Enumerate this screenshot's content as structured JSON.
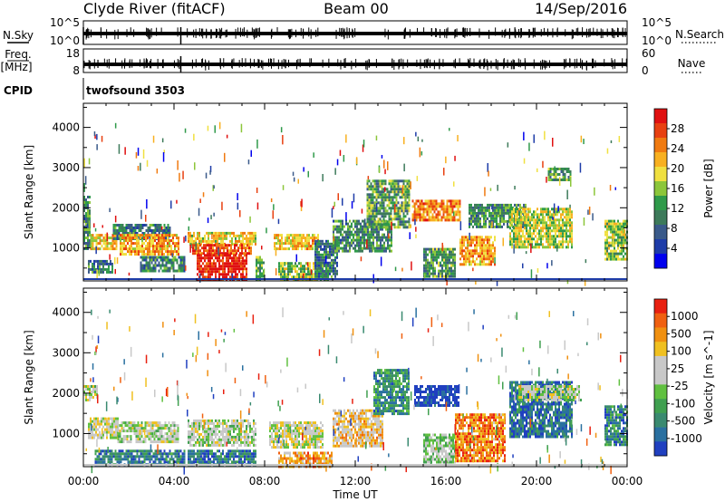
{
  "header": {
    "station": "Clyde River (fitACF)",
    "beam": "Beam 00",
    "date": "14/Sep/2016"
  },
  "strips": {
    "nsky": {
      "label": "N.Sky",
      "ticks": [
        "10^5",
        "10^0"
      ]
    },
    "freq": {
      "label_1": "Freq.",
      "label_2": "[MHz]",
      "ticks": [
        "18",
        "8"
      ]
    },
    "nsearch": {
      "label": "N.Search",
      "ticks": [
        "10^5",
        "10^0"
      ]
    },
    "nave": {
      "label": "Nave",
      "ticks": [
        "60",
        "0"
      ]
    },
    "cpid": {
      "label": "CPID",
      "value": "twofsound 3503"
    }
  },
  "chart_data": [
    {
      "type": "heatmap",
      "quantity": "power",
      "ylabel": "Slant Range [km]",
      "xlabel": "Time UT",
      "x_ticks": [
        "00:00",
        "04:00",
        "08:00",
        "12:00",
        "16:00",
        "20:00",
        "00:00"
      ],
      "x_range_hours": [
        0,
        24
      ],
      "ylim": [
        180,
        4600
      ],
      "y_ticks": [
        1000,
        2000,
        3000,
        4000
      ],
      "colorbar": {
        "label": "Power [dB]",
        "ticks": [
          4,
          8,
          12,
          16,
          20,
          24,
          28
        ],
        "colors": [
          "#0000ee",
          "#1e3ca8",
          "#3a5a8a",
          "#3d7a5a",
          "#2f9a4a",
          "#8cc63a",
          "#f0e040",
          "#f8b020",
          "#f07a10",
          "#e84010",
          "#e01010"
        ]
      },
      "echo_regions": [
        {
          "t": [
            0.0,
            0.3
          ],
          "r": [
            1000,
            2300
          ],
          "level": 0.35
        },
        {
          "t": [
            0.2,
            1.3
          ],
          "r": [
            400,
            700
          ],
          "level": 0.3
        },
        {
          "t": [
            0.3,
            1.5
          ],
          "r": [
            950,
            1350
          ],
          "level": 0.65
        },
        {
          "t": [
            1.3,
            3.8
          ],
          "r": [
            1250,
            1600
          ],
          "level": 0.3
        },
        {
          "t": [
            1.6,
            4.2
          ],
          "r": [
            850,
            1350
          ],
          "level": 0.7
        },
        {
          "t": [
            2.5,
            4.5
          ],
          "r": [
            400,
            800
          ],
          "level": 0.3
        },
        {
          "t": [
            4.6,
            7.6
          ],
          "r": [
            1100,
            1400
          ],
          "level": 0.6
        },
        {
          "t": [
            4.8,
            7.4
          ],
          "r": [
            850,
            1100
          ],
          "level": 0.85
        },
        {
          "t": [
            5.0,
            7.2
          ],
          "r": [
            200,
            850
          ],
          "level": 0.95
        },
        {
          "t": [
            7.6,
            8.0
          ],
          "r": [
            200,
            800
          ],
          "level": 0.4
        },
        {
          "t": [
            8.4,
            10.4
          ],
          "r": [
            1000,
            1350
          ],
          "level": 0.65
        },
        {
          "t": [
            8.6,
            10.8
          ],
          "r": [
            200,
            650
          ],
          "level": 0.5
        },
        {
          "t": [
            10.2,
            11.2
          ],
          "r": [
            300,
            1200
          ],
          "level": 0.3
        },
        {
          "t": [
            11.0,
            13.6
          ],
          "r": [
            900,
            1700
          ],
          "level": 0.35
        },
        {
          "t": [
            12.5,
            14.4
          ],
          "r": [
            1500,
            2700
          ],
          "level": 0.4
        },
        {
          "t": [
            14.5,
            16.6
          ],
          "r": [
            1700,
            2200
          ],
          "level": 0.75
        },
        {
          "t": [
            15.0,
            16.4
          ],
          "r": [
            300,
            1000
          ],
          "level": 0.4
        },
        {
          "t": [
            16.6,
            18.2
          ],
          "r": [
            600,
            1300
          ],
          "level": 0.7
        },
        {
          "t": [
            17.0,
            19.5
          ],
          "r": [
            1500,
            2100
          ],
          "level": 0.35
        },
        {
          "t": [
            18.8,
            21.6
          ],
          "r": [
            1000,
            2000
          ],
          "level": 0.55
        },
        {
          "t": [
            20.5,
            21.5
          ],
          "r": [
            2700,
            3000
          ],
          "level": 0.4
        },
        {
          "t": [
            23.0,
            24.0
          ],
          "r": [
            700,
            1700
          ],
          "level": 0.5
        }
      ]
    },
    {
      "type": "heatmap",
      "quantity": "velocity",
      "ylabel": "Slant Range [km]",
      "xlabel": "Time UT",
      "x_ticks": [
        "00:00",
        "04:00",
        "08:00",
        "12:00",
        "16:00",
        "20:00",
        "00:00"
      ],
      "x_range_hours": [
        0,
        24
      ],
      "ylim": [
        180,
        4600
      ],
      "y_ticks": [
        1000,
        2000,
        3000,
        4000
      ],
      "colorbar": {
        "label": "Velocity [m s^-1]",
        "ticks": [
          "1000",
          "500",
          "100",
          "25",
          "-25",
          "-100",
          "-500",
          "-1000"
        ],
        "colors": [
          "#2040c0",
          "#2a70a0",
          "#3a8a70",
          "#40a050",
          "#60c040",
          "#c8c8c8",
          "#c8c8c8",
          "#f0c020",
          "#f09010",
          "#f06010",
          "#e82010"
        ]
      },
      "echo_regions": [
        {
          "t": [
            0.0,
            0.6
          ],
          "r": [
            1800,
            2200
          ],
          "level": 0.5
        },
        {
          "t": [
            0.2,
            1.5
          ],
          "r": [
            900,
            1400
          ],
          "level": 0.55
        },
        {
          "t": [
            1.5,
            4.2
          ],
          "r": [
            800,
            1300
          ],
          "level": 0.5
        },
        {
          "t": [
            0.5,
            4.5
          ],
          "r": [
            200,
            600
          ],
          "level": 0.2
        },
        {
          "t": [
            4.6,
            7.6
          ],
          "r": [
            700,
            1350
          ],
          "level": 0.5
        },
        {
          "t": [
            4.6,
            7.6
          ],
          "r": [
            200,
            600
          ],
          "level": 0.15
        },
        {
          "t": [
            8.2,
            10.6
          ],
          "r": [
            650,
            1300
          ],
          "level": 0.55
        },
        {
          "t": [
            8.6,
            11.0
          ],
          "r": [
            200,
            550
          ],
          "level": 0.75
        },
        {
          "t": [
            11.0,
            13.2
          ],
          "r": [
            700,
            1600
          ],
          "level": 0.65
        },
        {
          "t": [
            12.8,
            14.4
          ],
          "r": [
            1500,
            2600
          ],
          "level": 0.25
        },
        {
          "t": [
            14.6,
            16.6
          ],
          "r": [
            1700,
            2200
          ],
          "level": 0.02
        },
        {
          "t": [
            15.0,
            16.4
          ],
          "r": [
            300,
            1000
          ],
          "level": 0.45
        },
        {
          "t": [
            16.4,
            18.6
          ],
          "r": [
            300,
            1500
          ],
          "level": 0.8
        },
        {
          "t": [
            18.8,
            21.6
          ],
          "r": [
            900,
            2300
          ],
          "level": 0.15
        },
        {
          "t": [
            19.2,
            22.0
          ],
          "r": [
            1800,
            2200
          ],
          "level": 0.5
        },
        {
          "t": [
            23.0,
            24.0
          ],
          "r": [
            700,
            1700
          ],
          "level": 0.2
        }
      ]
    }
  ]
}
